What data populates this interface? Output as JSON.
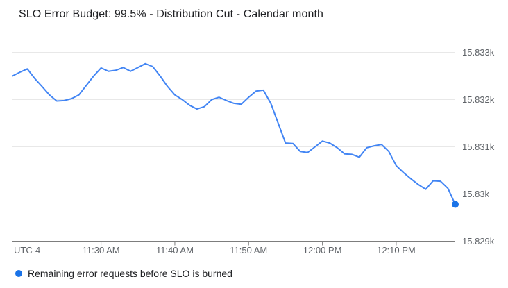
{
  "header": {
    "title": "SLO Error Budget: 99.5% - Distribution Cut - Calendar month"
  },
  "colors": {
    "line": "#4285f4",
    "endpoint_dot": "#1a73e8",
    "grid": "#e8e8e8",
    "axis": "#7d7d7d",
    "tick_label": "#5f6368",
    "title_text": "#202124",
    "legend_text": "#202124",
    "background": "#ffffff"
  },
  "legend": {
    "marker": "blue-dot",
    "marker_color": "#1a73e8",
    "label": "Remaining error requests before SLO is burned"
  },
  "x_axis": {
    "timezone_label": "UTC-4"
  },
  "chart_data": {
    "type": "line",
    "title": "SLO Error Budget: 99.5% - Distribution Cut - Calendar month",
    "series_name": "Remaining error requests before SLO is burned",
    "x_start": "11:18 AM",
    "x_end": "12:18 PM",
    "x_interval_minutes": 1,
    "x_total_minutes": 60,
    "x_tick_minutes": [
      12,
      22,
      32,
      42,
      52
    ],
    "x_tick_labels": [
      "11:30 AM",
      "11:40 AM",
      "11:50 AM",
      "12:00 PM",
      "12:10 PM"
    ],
    "x_axis_note": "UTC-4",
    "y_tick_values": [
      15833,
      15832,
      15831,
      15830,
      15829
    ],
    "y_tick_labels": [
      "15.833k",
      "15.832k",
      "15.831k",
      "15.83k",
      "15.829k"
    ],
    "ylim": [
      15829,
      15833
    ],
    "grid": true,
    "legend_position": "bottom-left",
    "endpoint_marker": true,
    "values": [
      15832.5,
      15832.58,
      15832.65,
      15832.45,
      15832.28,
      15832.1,
      15831.97,
      15831.98,
      15832.02,
      15832.1,
      15832.3,
      15832.5,
      15832.67,
      15832.6,
      15832.62,
      15832.68,
      15832.6,
      15832.68,
      15832.76,
      15832.7,
      15832.5,
      15832.28,
      15832.1,
      15832.0,
      15831.88,
      15831.8,
      15831.85,
      15832.0,
      15832.05,
      15831.98,
      15831.92,
      15831.9,
      15832.05,
      15832.18,
      15832.2,
      15831.92,
      15831.5,
      15831.08,
      15831.07,
      15830.9,
      15830.88,
      15831.0,
      15831.12,
      15831.08,
      15830.98,
      15830.85,
      15830.84,
      15830.78,
      15830.98,
      15831.02,
      15831.05,
      15830.9,
      15830.6,
      15830.45,
      15830.32,
      15830.2,
      15830.1,
      15830.28,
      15830.27,
      15830.12,
      15829.78
    ]
  }
}
